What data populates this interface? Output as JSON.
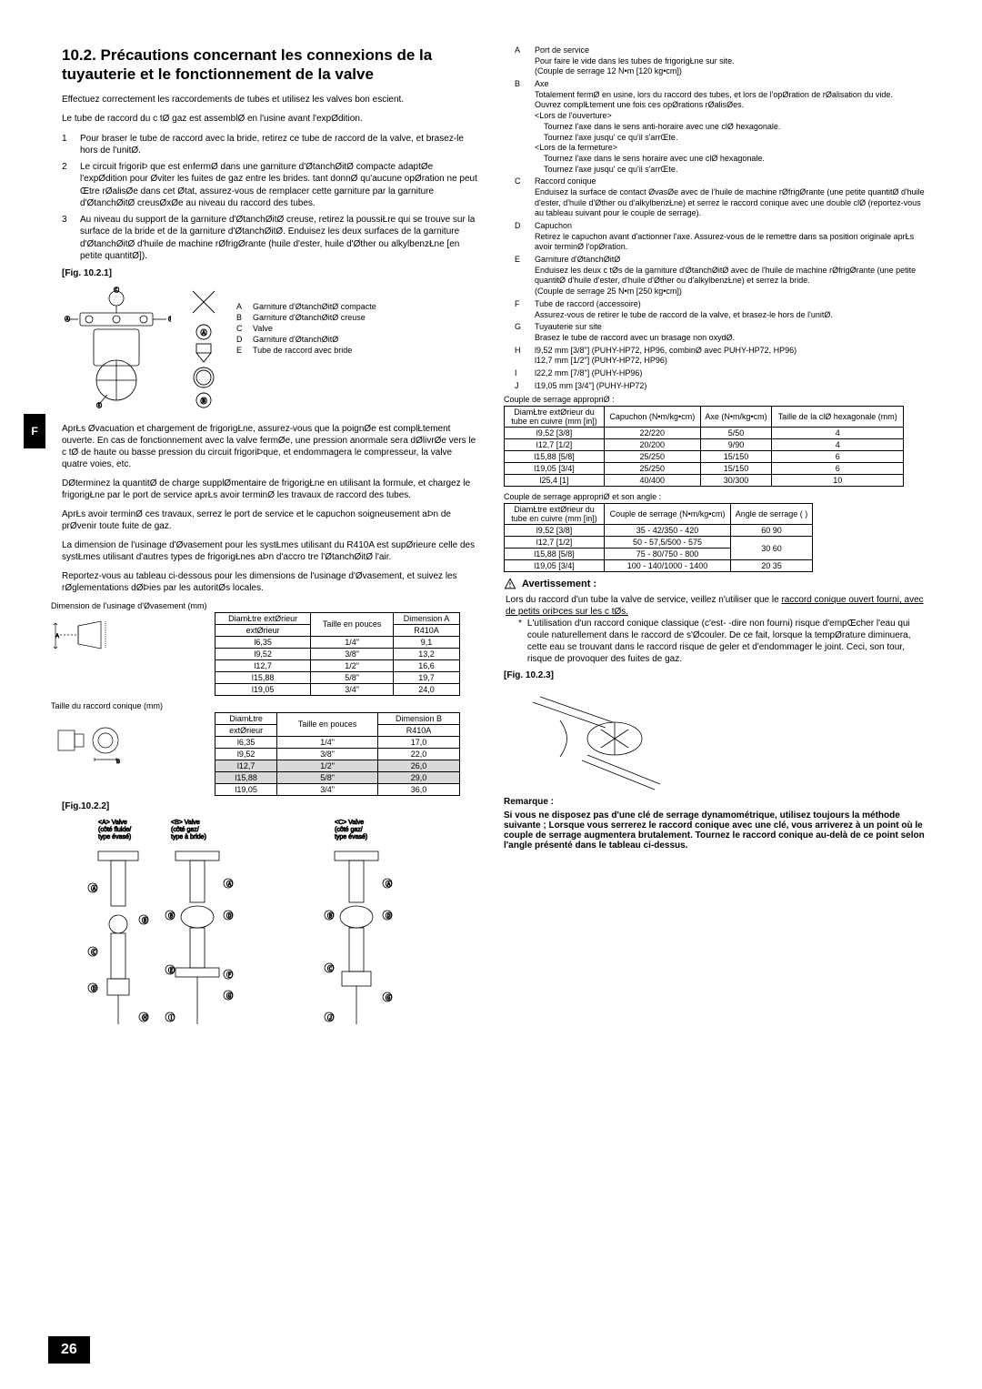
{
  "doc": {
    "page_number": "26",
    "side_tab": "F",
    "heading": "10.2. Précautions concernant les connexions de la tuyauterie et le fonctionnement de la valve",
    "intro1": "Effectuez correctement les raccordements de tubes et utilisez les valves bon escient.",
    "intro2": "Le tube de raccord du c tØ gaz est assemblØ en l'usine avant l'expØdition.",
    "list_items": [
      "Pour braser le tube de raccord avec la bride, retirez ce tube de raccord de la valve, et brasez-le hors de l'unitØ.",
      "Le circuit frigoriÞ que est enfermØ dans une garniture d'ØtanchØitØ compacte adaptØe   l'expØdition pour Øviter les fuites de gaz entre les brides.  tant donnØ qu'aucune opØration ne peut Œtre rØalisØe dans cet Øtat, assurez-vous de remplacer cette garniture par la garniture d'ØtanchØitØ creusØxØe au niveau du raccord des tubes.",
      "Au niveau du support de la garniture d'ØtanchØitØ creuse, retirez la poussiŁre qui se trouve sur la surface de la bride et de la garniture d'ØtanchØitØ. Enduisez les deux surfaces de la garniture d'ØtanchØitØ d'huile de machine rØfrigØrante (huile d'ester, huile d'Øther ou alkylbenzŁne [en petite quantitØ])."
    ],
    "fig_1021_label": "[Fig. 10.2.1]",
    "fig_1021_legend": [
      [
        "A",
        "Garniture d'ØtanchØitØ compacte"
      ],
      [
        "B",
        "Garniture d'ØtanchØitØ creuse"
      ],
      [
        "C",
        "Valve"
      ],
      [
        "D",
        "Garniture d'ØtanchØitØ"
      ],
      [
        "E",
        "Tube de raccord avec bride"
      ]
    ],
    "para_after_fig": [
      "AprŁs Øvacuation et chargement de frigorigŁne, assurez-vous que la poignØe est complŁtement ouverte. En cas de fonctionnement avec la valve fermØe, une pression anormale sera dØlivrØe vers le c tØ de haute ou basse pression du circuit frigoriÞque, et endommagera le compresseur, la valve quatre voies, etc.",
      "DØterminez la quantitØ de charge supplØmentaire de frigorigŁne en utilisant la formule, et chargez le frigorigŁne par le port de service aprŁs avoir terminØ les travaux de raccord des tubes.",
      "AprŁs avoir terminØ ces travaux, serrez le port de service et le capuchon soigneusement aÞn de prØvenir toute fuite de gaz.",
      "La dimension de l'usinage d'Øvasement pour les systŁmes utilisant du R410A est supØrieure   celle des systŁmes utilisant d'autres types de frigorigŁnes aÞn d'accro tre l'ØtanchØitØ   l'air.",
      "Reportez-vous au tableau ci-dessous pour les dimensions de l'usinage d'Øvasement, et suivez les rØglementations dØÞies par les autoritØs locales."
    ],
    "dim_evaporator_caption": "Dimension de l'usinage d'Øvasement (mm)",
    "dim_table1": {
      "columns": [
        "DiamŁtre extØrieur",
        "Taille en pouces",
        "Dimension A R410A"
      ],
      "rows": [
        [
          "l6,35",
          "1/4\"",
          "9,1"
        ],
        [
          "l9,52",
          "3/8\"",
          "13,2"
        ],
        [
          "l12,7",
          "1/2\"",
          "16,6"
        ],
        [
          "l15,88",
          "5/8\"",
          "19,7"
        ],
        [
          "l19,05",
          "3/4\"",
          "24,0"
        ]
      ]
    },
    "conique_caption": "Taille du raccord conique (mm)",
    "dim_table2": {
      "columns": [
        "DiamŁtre extØrieur",
        "Taille en pouces",
        "Dimension B R410A"
      ],
      "rows": [
        [
          "l6,35",
          "1/4\"",
          "17,0"
        ],
        [
          "l9,52",
          "3/8\"",
          "22,0"
        ],
        [
          "l12,7",
          "1/2\"",
          "26,0"
        ],
        [
          "l15,88",
          "5/8\"",
          "29,0"
        ],
        [
          "l19,05",
          "3/4\"",
          "36,0"
        ]
      ],
      "highlight_colors": [
        "#d9d9d9"
      ]
    },
    "fig_1022_label": "[Fig.10.2.2]",
    "fig_1022_labels": {
      "A": "<A> Valve (côté fluide/ type évasé)",
      "B": "<B> Valve (côté gaz/ type à bride)",
      "C": "<C> Valve (côté gaz/ type évasé)"
    }
  },
  "right": {
    "items": [
      {
        "k": "A",
        "t": "Port de service",
        "lines": [
          "Pour faire le vide dans les tubes de frigorigŁne sur site.",
          "(Couple de serrage 12 N•m [120 kg•cm])"
        ]
      },
      {
        "k": "B",
        "t": "Axe",
        "lines": [
          "Totalement fermØ en usine, lors du raccord des tubes, et lors de l'opØration de rØalisation du vide.",
          "Ouvrez complŁtement une fois ces opØrations rØalisØes.",
          "<Lors de l'ouverture>",
          "  Tournez l'axe dans le sens anti-horaire avec une clØ hexagonale.",
          "  Tournez l'axe jusqu'  ce qu'il s'arrŒte.",
          "<Lors de la fermeture>",
          "  Tournez l'axe dans le sens horaire avec une clØ hexagonale.",
          "  Tournez l'axe jusqu'  ce qu'il s'arrŒte."
        ]
      },
      {
        "k": "C",
        "t": "Raccord conique",
        "lines": [
          "Enduisez la surface de contact ØvasØe avec de l'huile de machine rØfrigØrante (une petite quantitØ d'huile d'ester, d'huile d'Øther ou d'alkylbenzŁne) et serrez le raccord conique avec une double clØ (reportez-vous au tableau suivant pour le couple de serrage)."
        ]
      },
      {
        "k": "D",
        "t": "Capuchon",
        "lines": [
          "Retirez le capuchon avant d'actionner l'axe. Assurez-vous de le remettre dans sa position originale aprŁs avoir terminØ l'opØration."
        ]
      },
      {
        "k": "E",
        "t": "Garniture d'ØtanchØitØ",
        "lines": [
          "Enduisez les deux c tØs de la garniture d'ØtanchØitØ avec de l'huile de machine rØfrigØrante (une petite quantitØ d'huile d'ester, d'huile d'Øther ou d'alkylbenzŁne) et serrez la bride.",
          "(Couple de serrage 25 N•m [250 kg•cm])"
        ]
      },
      {
        "k": "F",
        "t": "Tube de raccord (accessoire)",
        "lines": [
          "Assurez-vous de retirer le tube de raccord de la valve, et brasez-le hors de l'unitØ."
        ]
      },
      {
        "k": "G",
        "t": "Tuyauterie sur site",
        "lines": [
          "Brasez le tube de raccord avec un brasage non oxydØ."
        ]
      },
      {
        "k": "H",
        "t": "l9,52 mm [3/8\"] (PUHY-HP72, HP96, combinØ avec PUHY-HP72, HP96)",
        "lines": [
          "l12,7 mm [1/2\"] (PUHY-HP72, HP96)"
        ]
      },
      {
        "k": "I",
        "t": "l22,2 mm [7/8\"] (PUHY-HP96)",
        "lines": []
      },
      {
        "k": "J",
        "t": "l19,05 mm [3/4\"] (PUHY-HP72)",
        "lines": []
      }
    ],
    "torque_caption": "Couple de serrage appropriØ :",
    "torque_table": {
      "columns": [
        "DiamŁtre extØrieur du tube en cuivre (mm [in])",
        "Capuchon (N•m/kg•cm)",
        "Axe (N•m/kg•cm)",
        "Taille de la clØ hexagonale (mm)"
      ],
      "rows": [
        [
          "l9,52 [3/8]",
          "22/220",
          "5/50",
          "4"
        ],
        [
          "l12,7 [1/2]",
          "20/200",
          "9/90",
          "4"
        ],
        [
          "l15,88 [5/8]",
          "25/250",
          "15/150",
          "6"
        ],
        [
          "l19,05 [3/4]",
          "25/250",
          "15/150",
          "6"
        ],
        [
          "l25,4 [1]",
          "40/400",
          "30/300",
          "10"
        ]
      ]
    },
    "angle_caption": "Couple de serrage appropriØ et son angle :",
    "angle_table": {
      "columns": [
        "DiamŁtre extØrieur du tube en cuivre (mm [in])",
        "Couple de serrage (N•m/kg•cm)",
        "Angle de serrage ( )"
      ],
      "rows": [
        [
          "l9,52 [3/8]",
          "35 - 42/350 - 420",
          "60   90"
        ],
        [
          "l12,7 [1/2]",
          "50 - 57,5/500 - 575",
          "30   60"
        ],
        [
          "l15,88 [5/8]",
          "75 - 80/750 - 800",
          "30   60"
        ],
        [
          "l19,05 [3/4]",
          "100 - 140/1000 - 1400",
          "20   35"
        ]
      ]
    },
    "warn_heading": "Avertissement :",
    "warn_line1": "Lors du raccord d'un tube   la valve de service, veillez   n'utiliser que le ",
    "warn_line1_u": "raccord conique ouvert fourni, avec de petits oriÞces sur les c tØs.",
    "warn_ast": "L'utilisation d'un raccord conique classique (c'est- -dire non fourni) risque d'empŒcher l'eau qui coule naturellement dans le raccord de s'Øcouler. De ce fait, lorsque la tempØrature diminuera, cette eau se trouvant dans le raccord risque de geler et d'endommager le joint. Ceci,   son tour, risque de provoquer des fuites de gaz.",
    "fig_1023_label": "[Fig. 10.2.3]",
    "remarque_head": "Remarque :",
    "remarque_body": "Si vous ne disposez pas d'une clé de serrage dynamométrique, utilisez toujours la méthode suivante ; Lorsque vous serrerez le raccord conique avec une clé, vous arriverez à un point où le couple de serrage augmentera brutalement. Tournez le raccord conique au-delà de ce point selon l'angle présenté dans le tableau ci-dessus."
  }
}
